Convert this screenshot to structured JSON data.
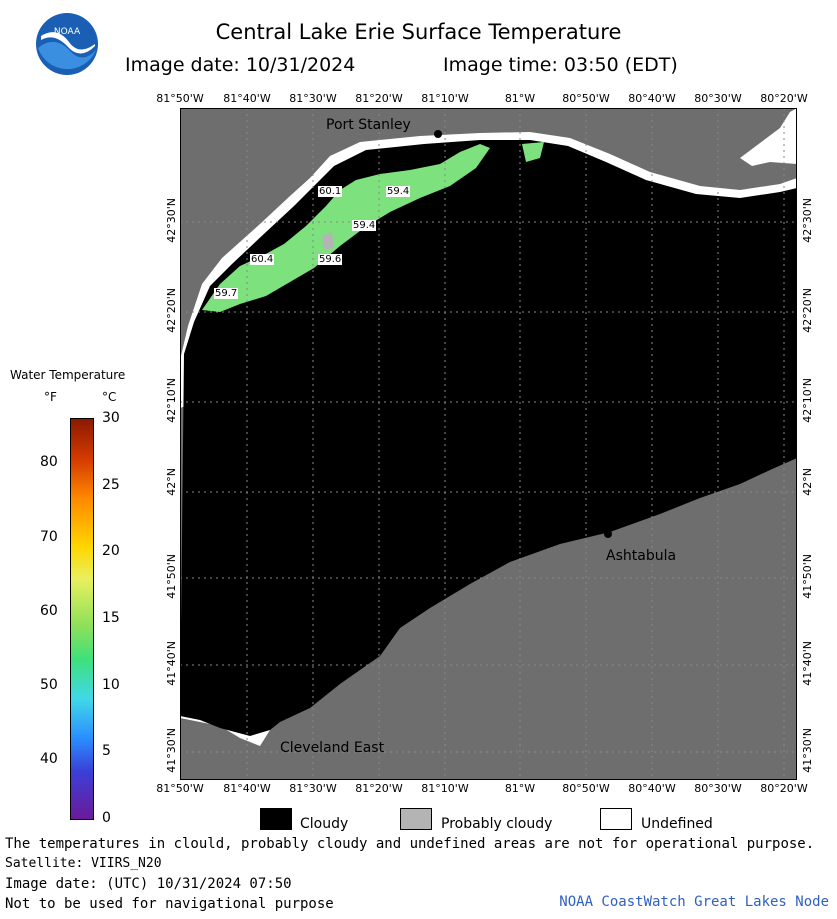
{
  "header": {
    "title": "Central Lake Erie Surface Temperature",
    "image_date": "Image date: 10/31/2024",
    "image_time": "Image time: 03:50 (EDT)"
  },
  "logo": {
    "text": "NOAA",
    "icon": "noaa-logo-icon"
  },
  "longitude_ticks": [
    "81°50'W",
    "81°40'W",
    "81°30'W",
    "81°20'W",
    "81°10'W",
    "81°W",
    "80°50'W",
    "80°40'W",
    "80°30'W",
    "80°20'W"
  ],
  "latitude_ticks": [
    "42°30'N",
    "42°20'N",
    "42°10'N",
    "42°N",
    "41°50'N",
    "41°40'N",
    "41°30'N"
  ],
  "legend": {
    "title": "Water Temperature",
    "unit_f": "°F",
    "unit_c": "°C",
    "fahrenheit_labels": [
      "80",
      "70",
      "60",
      "50",
      "40"
    ],
    "celsius_labels": [
      "30",
      "25",
      "20",
      "15",
      "10",
      "5",
      "0"
    ],
    "scale_min_c": 0,
    "scale_max_c": 30
  },
  "places": {
    "port_stanley": "Port Stanley",
    "ashtabula": "Ashtabula",
    "cleveland_east": "Cleveland East"
  },
  "temperature_labels": [
    "60.1",
    "59.4",
    "59.4",
    "60.4",
    "59.6",
    "59.7"
  ],
  "key": {
    "cloudy": "Cloudy",
    "probably_cloudy": "Probably cloudy",
    "undefined": "Undefined"
  },
  "colors": {
    "land": "#6e6e6e",
    "cloudy": "#000000",
    "probably_cloudy": "#b4b4b4",
    "undefined": "#ffffff",
    "water_warm": "#7de27d",
    "credit": "#3060c0"
  },
  "footer": {
    "disclaimer": "The temperatures in clould, probably cloudy and undefined areas are not for operational purpose.",
    "satellite": "Satellite: VIIRS_N20",
    "utc_date": "Image date: (UTC) 10/31/2024  07:50",
    "navigation": "Not to be used for navigational purpose",
    "credit": "NOAA CoastWatch Great Lakes Node"
  }
}
